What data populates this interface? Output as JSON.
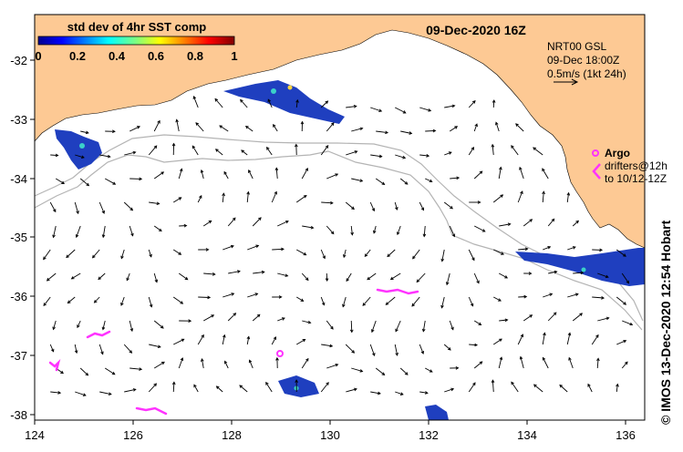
{
  "map": {
    "title_time": "09-Dec-2020 16Z",
    "colorbar": {
      "title": "std dev of 4hr SST comp",
      "ticks": [
        "0",
        "0.2",
        "0.4",
        "0.6",
        "0.8",
        "1"
      ]
    },
    "current_info": {
      "model": "NRT00 GSL",
      "time": "09-Dec 18:00Z",
      "scale": "0.5m/s (1kt 24h)"
    },
    "argo_label": "Argo",
    "drifters_line1": "drifters@12h",
    "drifters_line2": "to 10/12-12Z",
    "credit": "© IMOS 13-Dec-2020 12:54 Hobart",
    "lon_ticks": [
      "124",
      "126",
      "128",
      "130",
      "132",
      "134",
      "136"
    ],
    "lat_ticks": [
      "-32",
      "-33",
      "-34",
      "-35",
      "-36",
      "-37",
      "-38"
    ],
    "colors": {
      "land": "#fdc994",
      "ocean": "#ffffff",
      "isobath": "#b4b4b4",
      "drifter": "#ff33ff",
      "sst_patch": "#1f3fbf"
    }
  }
}
